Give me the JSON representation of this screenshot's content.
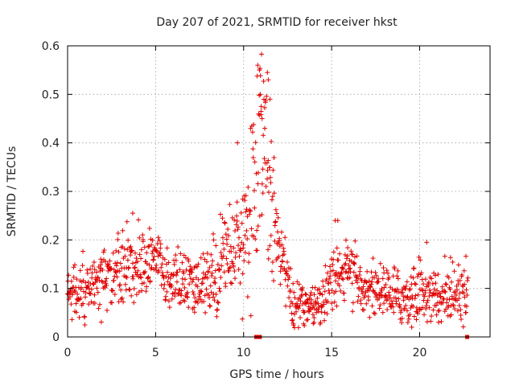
{
  "chart_data": {
    "type": "scatter",
    "title": "Day 207 of 2021, SRMTID for receiver hkst",
    "xlabel": "GPS time / hours",
    "ylabel": "SRMTID / TECUs",
    "xlim": [
      0,
      24
    ],
    "ylim": [
      0,
      0.6
    ],
    "xticks": [
      0,
      5,
      10,
      15,
      20
    ],
    "xtick_labels": [
      "0",
      "5",
      "10",
      "15",
      "20"
    ],
    "yticks": [
      0,
      0.1,
      0.2,
      0.3,
      0.4,
      0.5,
      0.6
    ],
    "ytick_labels": [
      "0",
      "0.1",
      "0.2",
      "0.3",
      "0.4",
      "0.5",
      "0.6"
    ],
    "grid": true,
    "marker": "+",
    "series_color": "#e00000",
    "profile_hours": [
      0,
      0.5,
      1,
      1.5,
      2,
      2.5,
      3,
      3.5,
      4,
      4.5,
      5,
      5.5,
      6,
      6.5,
      7,
      7.5,
      8,
      8.5,
      9,
      9.5,
      10,
      10.5,
      11,
      11.5,
      12,
      12.5,
      13,
      13.5,
      14,
      14.5,
      15,
      15.5,
      16,
      16.5,
      17,
      17.5,
      18,
      18.5,
      19,
      19.5,
      20,
      20.5,
      21,
      21.5,
      22,
      22.5
    ],
    "profile_median": [
      0.09,
      0.09,
      0.085,
      0.1,
      0.12,
      0.13,
      0.125,
      0.15,
      0.14,
      0.16,
      0.17,
      0.12,
      0.11,
      0.12,
      0.1,
      0.1,
      0.12,
      0.13,
      0.19,
      0.18,
      0.22,
      0.28,
      0.38,
      0.32,
      0.2,
      0.1,
      0.065,
      0.065,
      0.06,
      0.085,
      0.12,
      0.14,
      0.13,
      0.11,
      0.1,
      0.1,
      0.095,
      0.085,
      0.08,
      0.085,
      0.1,
      0.085,
      0.08,
      0.09,
      0.1,
      0.105
    ],
    "profile_spread": [
      0.03,
      0.03,
      0.03,
      0.035,
      0.035,
      0.035,
      0.04,
      0.045,
      0.04,
      0.035,
      0.035,
      0.04,
      0.035,
      0.035,
      0.035,
      0.035,
      0.04,
      0.05,
      0.05,
      0.05,
      0.07,
      0.1,
      0.12,
      0.11,
      0.05,
      0.035,
      0.025,
      0.025,
      0.02,
      0.03,
      0.035,
      0.04,
      0.035,
      0.03,
      0.03,
      0.03,
      0.03,
      0.03,
      0.03,
      0.04,
      0.035,
      0.03,
      0.03,
      0.035,
      0.035,
      0.04
    ],
    "sample_interval_hours": 0.02,
    "data_end_hour": 22.75,
    "zero_markers": [
      {
        "x": 10.72,
        "y": 0
      },
      {
        "x": 10.82,
        "y": 0
      },
      {
        "x": 10.92,
        "y": 0
      },
      {
        "x": 22.7,
        "y": 0
      }
    ],
    "notable_points": [
      {
        "x": 10.8,
        "y": 0.56
      },
      {
        "x": 10.9,
        "y": 0.55
      },
      {
        "x": 11.35,
        "y": 0.545
      },
      {
        "x": 11.4,
        "y": 0.53
      },
      {
        "x": 10.95,
        "y": 0.5
      },
      {
        "x": 11.0,
        "y": 0.475
      },
      {
        "x": 11.05,
        "y": 0.45
      },
      {
        "x": 11.5,
        "y": 0.49
      },
      {
        "x": 9.65,
        "y": 0.4
      },
      {
        "x": 11.2,
        "y": 0.43
      },
      {
        "x": 3.7,
        "y": 0.255
      },
      {
        "x": 15.2,
        "y": 0.24
      },
      {
        "x": 15.35,
        "y": 0.24
      },
      {
        "x": 20.4,
        "y": 0.195
      },
      {
        "x": 19.55,
        "y": 0.02
      },
      {
        "x": 14.0,
        "y": 0.03
      },
      {
        "x": 8.3,
        "y": 0.2
      },
      {
        "x": 12.2,
        "y": 0.155
      }
    ]
  }
}
